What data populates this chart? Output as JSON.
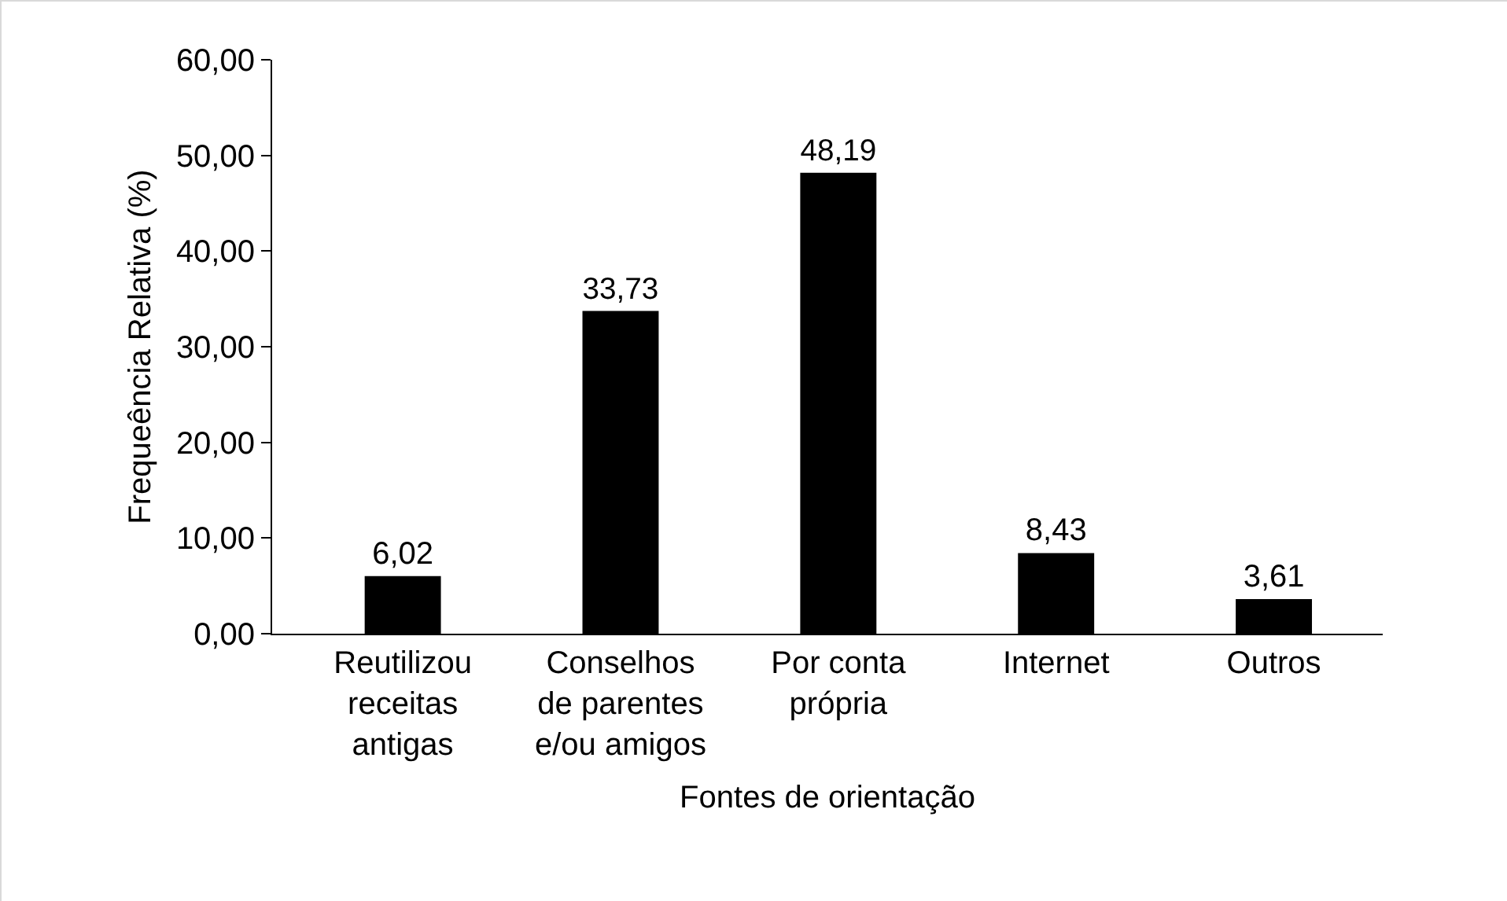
{
  "chart_data": {
    "type": "bar",
    "xlabel": "Fontes de orientação",
    "ylabel": "Frequeência Relativa (%)",
    "categories": [
      "Reutilizou\nreceitas\nantigas",
      "Conselhos\nde parentes\ne/ou amigos",
      "Por conta\nprópria",
      "Internet",
      "Outros"
    ],
    "values": [
      6.02,
      33.73,
      48.19,
      8.43,
      3.61
    ],
    "value_labels": [
      "6,02",
      "33,73",
      "48,19",
      "8,43",
      "3,61"
    ],
    "color": "#000000",
    "ylim": [
      0,
      60
    ],
    "yticks": [
      {
        "value": 0,
        "label": "0,00"
      },
      {
        "value": 10,
        "label": "10,00"
      },
      {
        "value": 20,
        "label": "20,00"
      },
      {
        "value": 30,
        "label": "30,00"
      },
      {
        "value": 40,
        "label": "40,00"
      },
      {
        "value": 50,
        "label": "50,00"
      },
      {
        "value": 60,
        "label": "60,00"
      }
    ],
    "grid": false
  }
}
